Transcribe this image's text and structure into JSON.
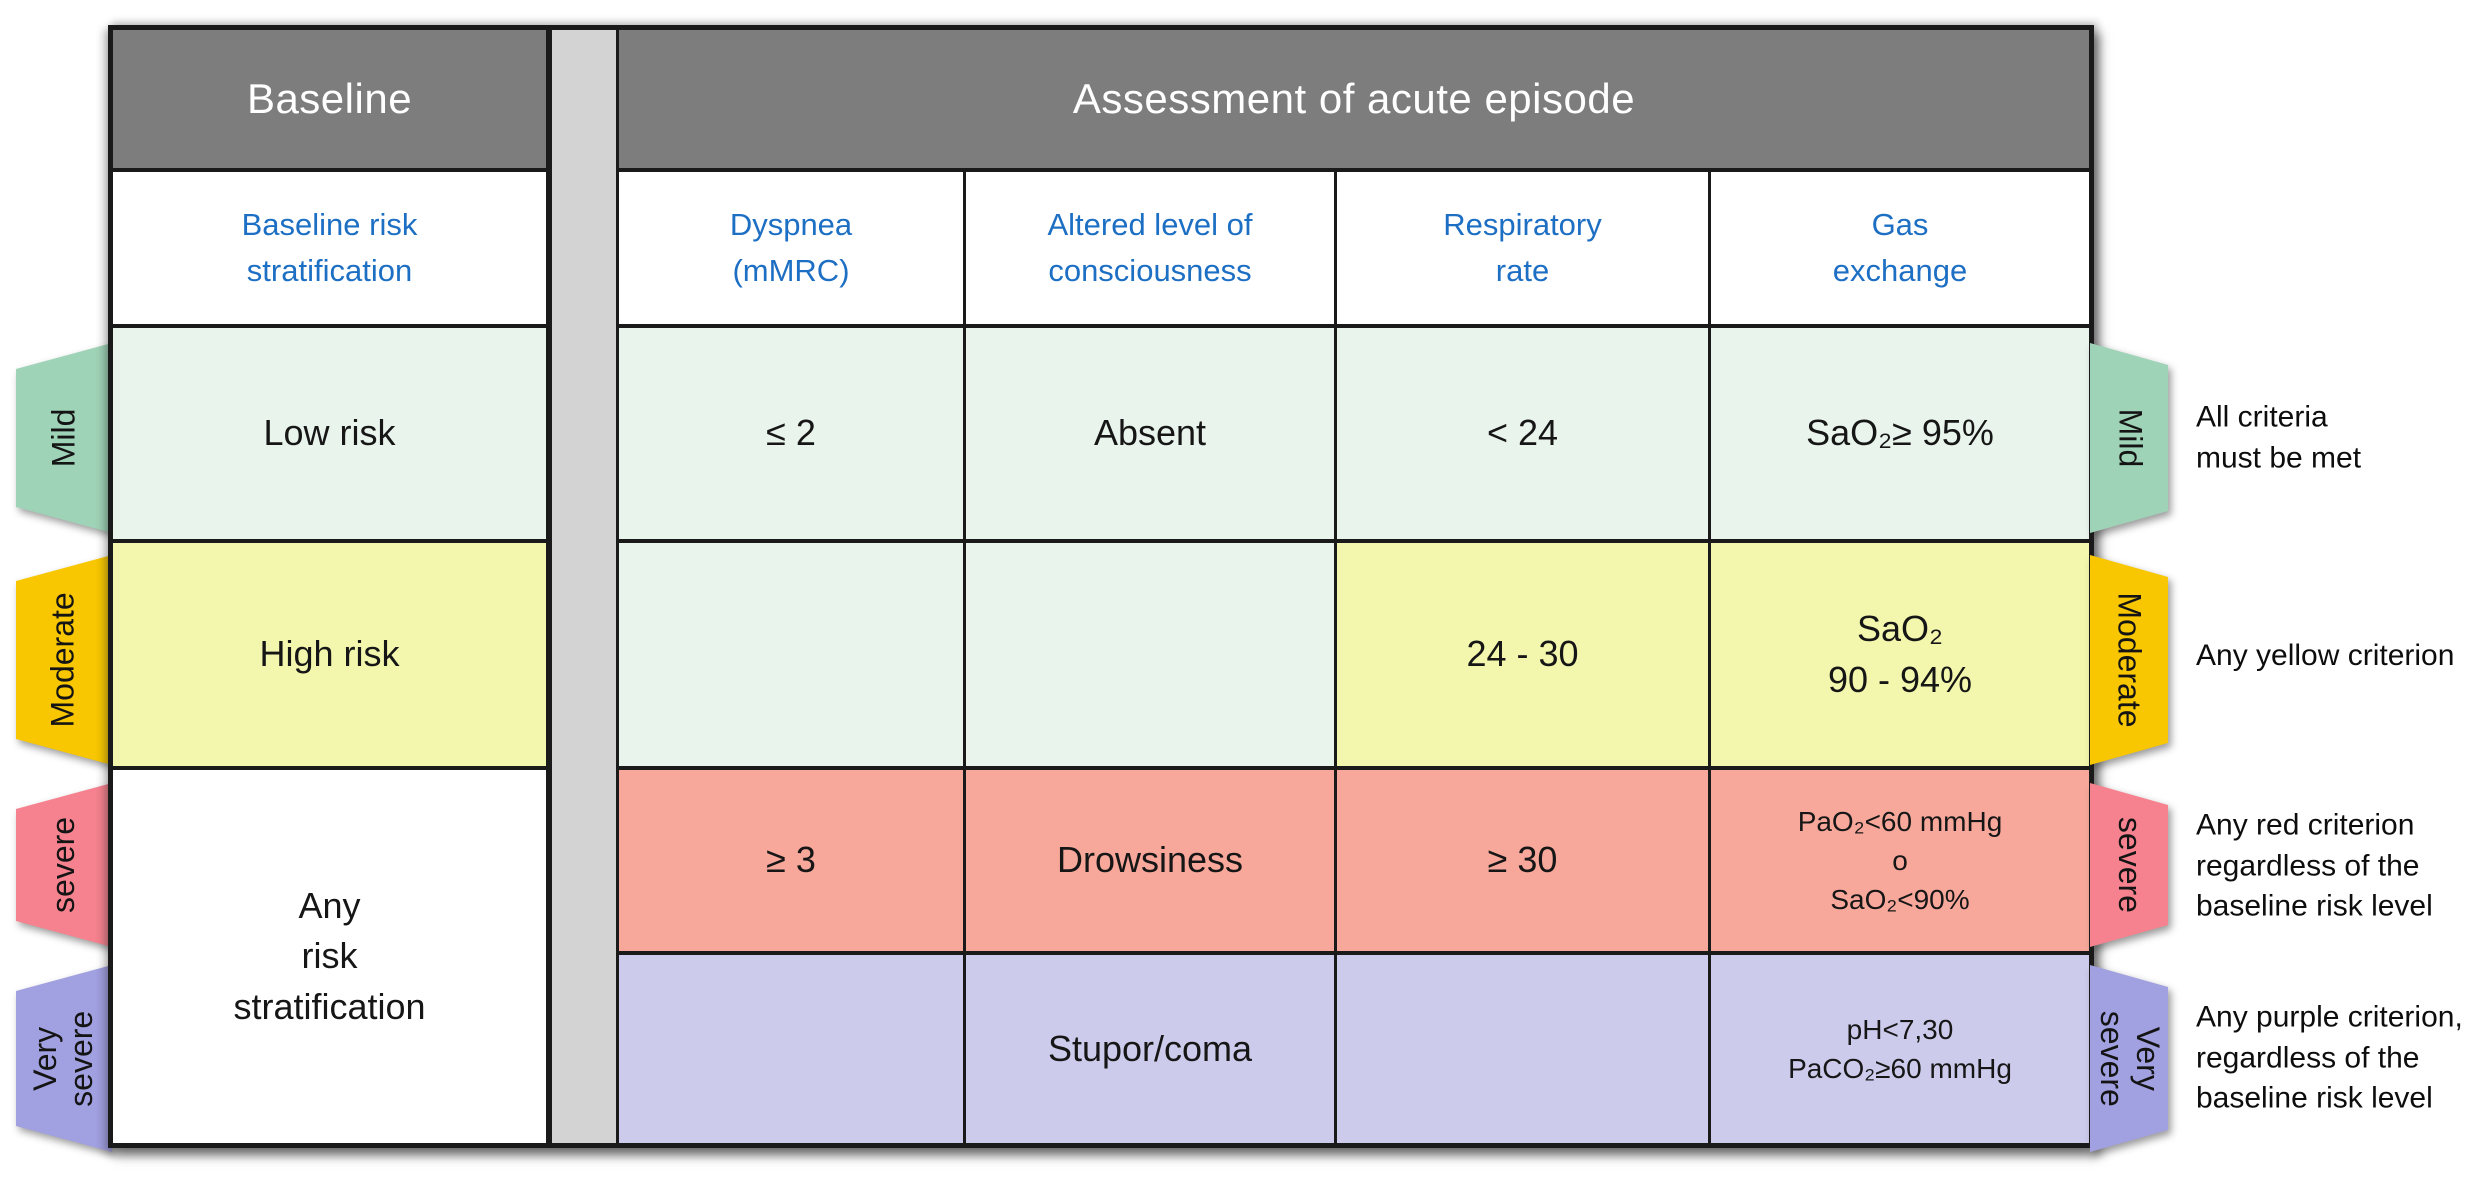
{
  "colors": {
    "line": "#1a1a1a",
    "text": "#161616",
    "header_gray": "#7d7d7d",
    "column_header_text": "#1d6fc4",
    "separator": "#d3d3d3",
    "mint": "#e9f4ed",
    "yellow": "#f3f7ad",
    "red": "#f7a89b",
    "purple": "#cccbeb",
    "tab_green": "#9fd3b7",
    "tab_yellow": "#f8c701",
    "tab_red": "#f5828e",
    "tab_purple": "#a1a0e0"
  },
  "table": {
    "baseline_header": "Baseline",
    "assessment_header": "Assessment of acute episode",
    "column_headers": {
      "baseline": "Baseline risk\nstratification",
      "dyspnea": "Dyspnea\n(mMRC)",
      "consciousness": "Altered level of\nconsciousness",
      "respiratory_rate": "Respiratory\nrate",
      "gas_exchange": "Gas\nexchange"
    },
    "rows": [
      {
        "severity": "Mild",
        "baseline": "Low risk",
        "dyspnea": "≤ 2",
        "consciousness": "Absent",
        "respiratory_rate": "< 24",
        "gas_exchange": "SaO₂≥ 95%",
        "rule": "All criteria\nmust be met"
      },
      {
        "severity": "Moderate",
        "baseline": "High risk",
        "dyspnea": "",
        "consciousness": "",
        "respiratory_rate": "24 - 30",
        "gas_exchange": "SaO₂\n90 - 94%",
        "rule": "Any yellow criterion"
      },
      {
        "severity": "severe",
        "baseline": "Any\nrisk\nstratification",
        "dyspnea": "≥ 3",
        "consciousness": "Drowsiness",
        "respiratory_rate": "≥ 30",
        "gas_exchange": "PaO₂<60 mmHg\no\nSaO₂<90%",
        "rule": "Any red criterion\nregardless of the\nbaseline risk level"
      },
      {
        "severity": "Very\nsevere",
        "baseline": "",
        "dyspnea": "",
        "consciousness": "Stupor/coma",
        "respiratory_rate": "",
        "gas_exchange": "pH<7,30\nPaCO₂≥60 mmHg",
        "rule": "Any purple criterion,\nregardless of the\nbaseline risk level"
      }
    ]
  }
}
